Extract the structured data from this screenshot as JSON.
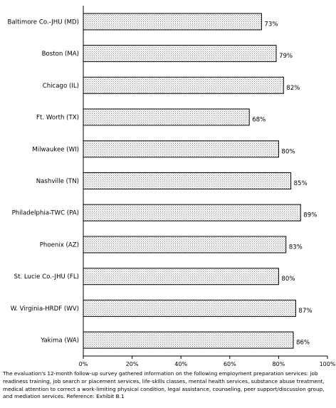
{
  "chart_data": {
    "type": "bar",
    "orientation": "horizontal",
    "categories": [
      "Baltimore Co.-JHU (MD)",
      "Boston (MA)",
      "Chicago (IL)",
      "Ft. Worth (TX)",
      "Milwaukee (WI)",
      "Nashville (TN)",
      "Philadelphia-TWC (PA)",
      "Phoenix (AZ)",
      "St. Lucie Co.-JHU (FL)",
      "W. Virginia-HRDF (WV)",
      "Yakima (WA)"
    ],
    "values": [
      73,
      79,
      82,
      68,
      80,
      85,
      89,
      83,
      80,
      87,
      86
    ],
    "value_labels": [
      "73%",
      "79%",
      "82%",
      "68%",
      "80%",
      "85%",
      "89%",
      "83%",
      "80%",
      "87%",
      "86%"
    ],
    "xlim": [
      0,
      100
    ],
    "x_ticks": [
      "0%",
      "20%",
      "40%",
      "60%",
      "80%",
      "100%"
    ],
    "grid": false,
    "bar_fill": "dotted-gray",
    "colors": {
      "bar_dots": "#888888",
      "bar_border": "#000000"
    }
  },
  "footnote": "The evaluation's 12-month follow-up survey gathered information on the following employment preparation services: job readiness training, job search or placement services, life-skills classes, mental health services, substance abuse treatment, medical attention to correct a work-limiting physical condition, legal assistance, counseling, peer support/discussion group, and mediation services. Reference: Exhibit B.1"
}
